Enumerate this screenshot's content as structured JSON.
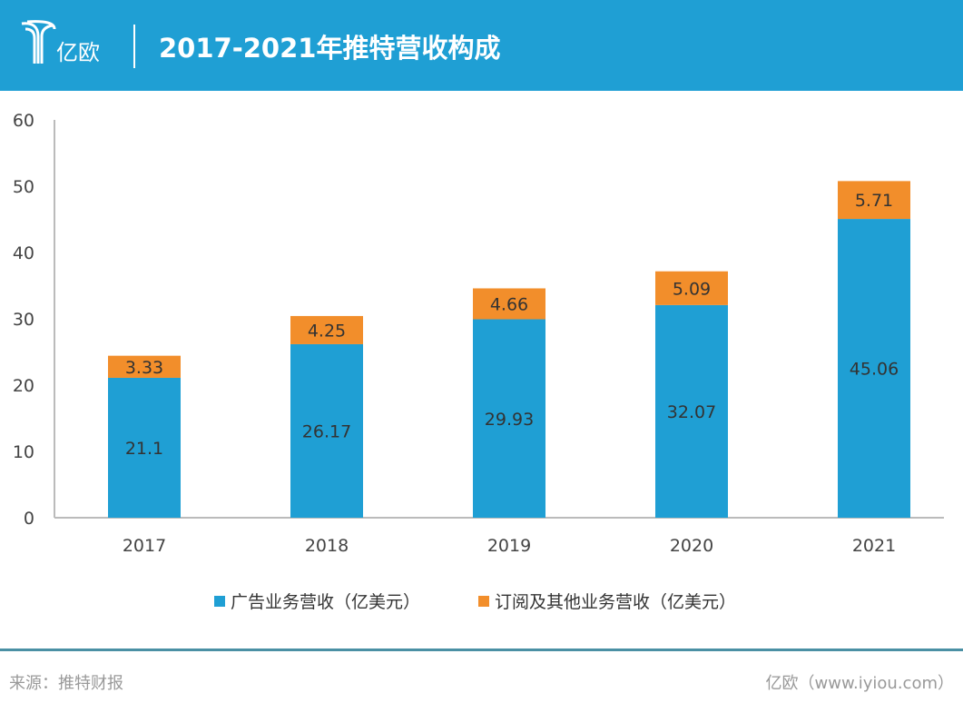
{
  "header": {
    "logo_text": "亿欧",
    "title": "2017-2021年推特营收构成"
  },
  "footer": {
    "source": "来源：推特财报",
    "credit": "亿欧（www.iyiou.com）"
  },
  "chart_data": {
    "type": "bar",
    "stacked": true,
    "categories": [
      "2017",
      "2018",
      "2019",
      "2020",
      "2021"
    ],
    "series": [
      {
        "name": "广告业务营收（亿美元）",
        "color": "#1f9fd4",
        "values": [
          21.1,
          26.17,
          29.93,
          32.07,
          45.06
        ]
      },
      {
        "name": "订阅及其他业务营收（亿美元）",
        "color": "#f28e2b",
        "values": [
          3.33,
          4.25,
          4.66,
          5.09,
          5.71
        ]
      }
    ],
    "ylim": [
      0,
      60
    ],
    "yticks": [
      0,
      10,
      20,
      30,
      40,
      50,
      60
    ],
    "grid": false,
    "legend": "bottom"
  }
}
